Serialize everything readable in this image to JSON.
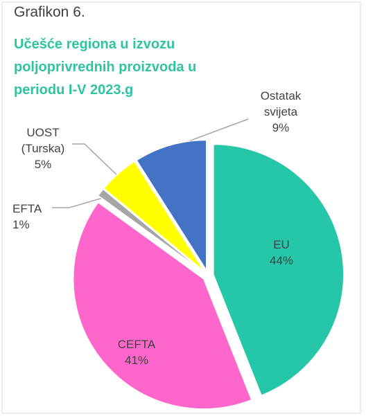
{
  "chart_data": {
    "type": "pie",
    "supertitle": "Grafikon 6.",
    "title": "Učešće regiona u izvozu poljoprivrednih proizvoda u periodu I-V 2023.g",
    "categories": [
      "EU",
      "CEFTA",
      "EFTA",
      "UOST (Turska)",
      "Ostatak svijeta"
    ],
    "values": [
      44,
      41,
      1,
      5,
      9
    ],
    "value_labels": [
      "44%",
      "41%",
      "1%",
      "5%",
      "9%"
    ],
    "colors": [
      "#26c6a9",
      "#ff66cc",
      "#a6a6a6",
      "#ffff00",
      "#4472c4"
    ]
  }
}
